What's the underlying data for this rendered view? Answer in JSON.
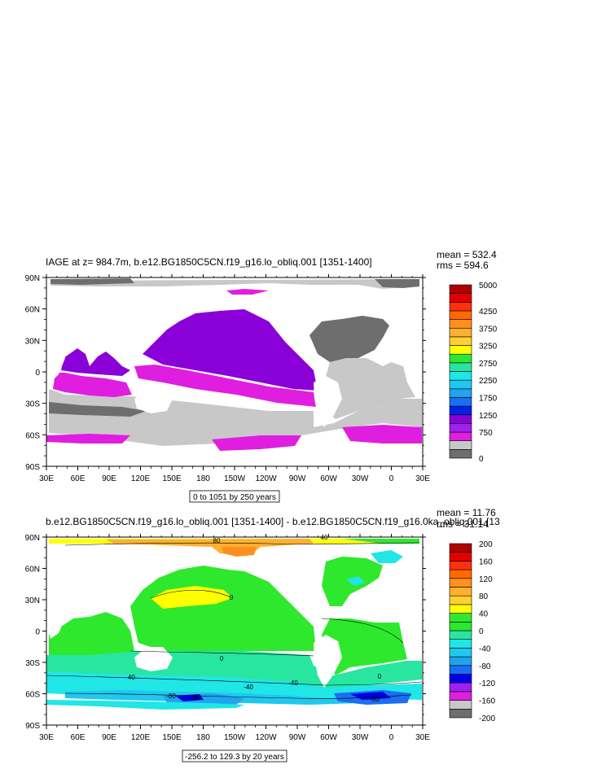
{
  "chart_data": [
    {
      "type": "heatmap",
      "title": "IAGE at z= 984.7m, b.e12.BG1850C5CN.f19_g16.lo_obliq.001 [1351-1400]",
      "stats": [
        "mean = 532.4",
        "rms = 594.6"
      ],
      "x_tick_labels": [
        "30E",
        "60E",
        "90E",
        "120E",
        "150E",
        "180",
        "150W",
        "120W",
        "90W",
        "60W",
        "30W",
        "0",
        "30E"
      ],
      "y_tick_labels": [
        "90N",
        "60N",
        "30N",
        "0",
        "30S",
        "60S",
        "90S"
      ],
      "xlim": [
        30,
        390
      ],
      "ylim": [
        -90,
        90
      ],
      "contour_info": "0 to 1051 by 250 years",
      "colorbar": {
        "colors": [
          "#6e6e6e",
          "#c8c8c8",
          "#e01ee0",
          "#a020f0",
          "#8a00d8",
          "#0022e6",
          "#1a6ef2",
          "#1fa4ee",
          "#20c8f0",
          "#20e6e6",
          "#28e6a0",
          "#2ee82e",
          "#ffff00",
          "#ffd030",
          "#ffb030",
          "#ff9020",
          "#ff6a00",
          "#ff3010",
          "#e00000",
          "#b00000"
        ],
        "labels": [
          "0",
          "750",
          "1250",
          "1750",
          "2250",
          "2750",
          "3250",
          "3750",
          "4250",
          "5000"
        ]
      }
    },
    {
      "type": "heatmap",
      "title": "b.e12.BG1850C5CN.f19_g16.lo_obliq.001 [1351-1400] - b.e12.BG1850C5CN.f19_g16.0ka_obliq.001 [13",
      "stats": [
        "mean = 11.76",
        "rms = 31.14"
      ],
      "x_tick_labels": [
        "30E",
        "60E",
        "90E",
        "120E",
        "150E",
        "180",
        "150W",
        "120W",
        "90W",
        "60W",
        "30W",
        "0",
        "30E"
      ],
      "y_tick_labels": [
        "90N",
        "60N",
        "30N",
        "0",
        "30S",
        "60S",
        "90S"
      ],
      "xlim": [
        30,
        390
      ],
      "ylim": [
        -90,
        90
      ],
      "contour_labels": [
        "80",
        "40",
        "0",
        "0",
        "-40",
        "-40",
        "-40",
        "-80",
        "-80",
        "-80",
        "0"
      ],
      "contour_info": "-256.2 to 129.3 by 20 years",
      "colorbar": {
        "colors": [
          "#6e6e6e",
          "#c8c8c8",
          "#e01ee0",
          "#a020f0",
          "#0000e6",
          "#1a6ef2",
          "#1fa4ee",
          "#20c8f0",
          "#20e6e6",
          "#28e6a0",
          "#2ee82e",
          "#30e830",
          "#ffff00",
          "#ffd030",
          "#ffb030",
          "#ff9020",
          "#ff6a00",
          "#ff3010",
          "#e00000",
          "#b00000"
        ],
        "labels": [
          "-200",
          "-160",
          "-120",
          "-80",
          "-40",
          "0",
          "40",
          "80",
          "120",
          "160",
          "200"
        ]
      }
    }
  ]
}
